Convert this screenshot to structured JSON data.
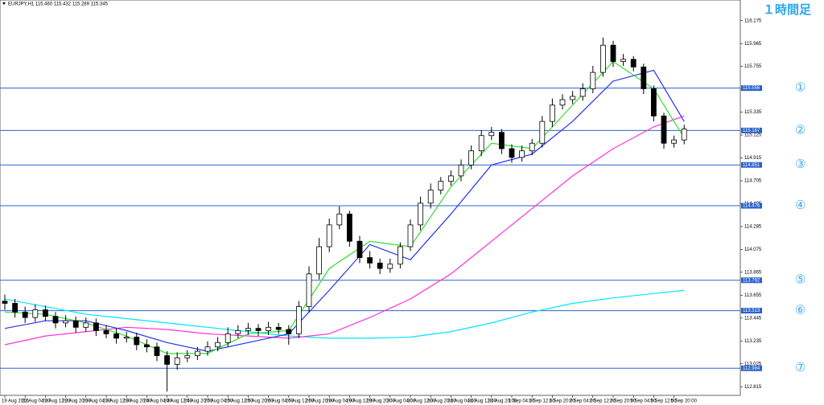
{
  "chart_data": {
    "type": "candlestick",
    "title": "EURJPY,H1 115.460 115.432 115.289 115.345",
    "subtitle": "１時間足",
    "categories": [
      "19 Aug 2016",
      null,
      "22 Aug 04:00",
      null,
      "22 Aug 12:00",
      null,
      "22 Aug 20:00",
      null,
      "23 Aug 04:00",
      null,
      "23 Aug 12:00",
      null,
      "23 Aug 20:00",
      null,
      "24 Aug 04:00",
      null,
      "24 Aug 12:00",
      null,
      "24 Aug 20:00",
      null,
      "25 Aug 04:00",
      null,
      "25 Aug 12:00",
      null,
      "25 Aug 20:00",
      null,
      "26 Aug 04:00",
      null,
      "26 Aug 12:00",
      null,
      "26 Aug 20:00",
      null,
      "29 Aug 04:00",
      null,
      "29 Aug 12:00",
      null,
      "29 Aug 20:00",
      null,
      "30 Aug 04:00",
      null,
      "30 Aug 12:00",
      null,
      "30 Aug 20:00",
      null,
      "31 Aug 04:00",
      null,
      "31 Aug 12:00",
      null,
      "31 Aug 20:00",
      null,
      "1 Sep 04:00",
      null,
      "1 Sep 12:00",
      null,
      "1 Sep 20:00",
      null,
      "2 Sep 04:00",
      null,
      "2 Sep 12:00",
      null,
      "2 Sep 20:00",
      null,
      "5 Sep 04:00",
      null,
      "5 Sep 12:00",
      null,
      "5 Sep 20:00",
      null
    ],
    "open": [
      113.6,
      113.58,
      113.5,
      113.45,
      113.52,
      113.46,
      113.4,
      113.42,
      113.36,
      113.4,
      113.33,
      113.3,
      113.26,
      113.27,
      113.2,
      113.18,
      113.1,
      113.02,
      113.08,
      113.1,
      113.14,
      113.18,
      113.22,
      113.3,
      113.33,
      113.35,
      113.33,
      113.36,
      113.34,
      113.3,
      113.55,
      113.85,
      114.1,
      114.3,
      114.4,
      114.15,
      114.0,
      113.95,
      113.9,
      113.94,
      114.1,
      114.3,
      114.5,
      114.62,
      114.7,
      114.75,
      114.85,
      114.98,
      115.12,
      115.15,
      115.0,
      114.92,
      114.98,
      115.05,
      115.25,
      115.4,
      115.45,
      115.48,
      115.55,
      115.7,
      115.95,
      115.8,
      115.82,
      115.75,
      115.55,
      115.3,
      115.05,
      115.08
    ],
    "high": [
      113.66,
      113.62,
      113.55,
      113.57,
      113.56,
      113.5,
      113.47,
      113.46,
      113.45,
      113.44,
      113.38,
      113.35,
      113.32,
      113.31,
      113.25,
      113.22,
      113.14,
      113.13,
      113.15,
      113.18,
      113.23,
      113.27,
      113.36,
      113.38,
      113.4,
      113.39,
      113.41,
      113.4,
      113.38,
      113.6,
      113.92,
      114.18,
      114.36,
      114.47,
      114.43,
      114.2,
      114.06,
      113.99,
      113.99,
      114.14,
      114.35,
      114.56,
      114.68,
      114.74,
      114.8,
      114.9,
      115.03,
      115.17,
      115.2,
      115.18,
      115.04,
      115.03,
      115.09,
      115.3,
      115.46,
      115.5,
      115.53,
      115.6,
      115.76,
      116.02,
      115.99,
      115.87,
      115.85,
      115.78,
      115.58,
      115.33,
      115.12,
      115.22
    ],
    "low": [
      113.52,
      113.45,
      113.4,
      113.41,
      113.42,
      113.35,
      113.36,
      113.31,
      113.32,
      113.28,
      113.26,
      113.21,
      113.22,
      113.15,
      113.13,
      113.05,
      112.77,
      112.97,
      113.04,
      113.06,
      113.1,
      113.14,
      113.18,
      113.26,
      113.29,
      113.28,
      113.29,
      113.3,
      113.2,
      113.26,
      113.5,
      113.8,
      114.05,
      114.26,
      114.1,
      113.95,
      113.9,
      113.85,
      113.86,
      113.9,
      114.06,
      114.25,
      114.45,
      114.58,
      114.66,
      114.7,
      114.81,
      114.93,
      115.08,
      114.95,
      114.87,
      114.88,
      114.94,
      115.01,
      115.2,
      115.36,
      115.41,
      115.44,
      115.51,
      115.66,
      115.75,
      115.76,
      115.71,
      115.5,
      115.25,
      115.0,
      115.01,
      115.04
    ],
    "close": [
      113.58,
      113.5,
      113.45,
      113.52,
      113.46,
      113.4,
      113.42,
      113.36,
      113.4,
      113.33,
      113.3,
      113.26,
      113.27,
      113.2,
      113.18,
      113.1,
      113.02,
      113.08,
      113.1,
      113.14,
      113.18,
      113.22,
      113.3,
      113.33,
      113.35,
      113.33,
      113.36,
      113.34,
      113.3,
      113.55,
      113.85,
      114.1,
      114.3,
      114.4,
      114.15,
      114.0,
      113.95,
      113.9,
      113.94,
      114.1,
      114.3,
      114.5,
      114.62,
      114.7,
      114.75,
      114.85,
      114.98,
      115.12,
      115.15,
      115.0,
      114.92,
      114.98,
      115.05,
      115.25,
      115.4,
      115.45,
      115.48,
      115.55,
      115.7,
      115.95,
      115.8,
      115.82,
      115.75,
      115.55,
      115.3,
      115.05,
      115.08,
      115.18
    ],
    "lines": {
      "x": [
        0,
        4,
        8,
        12,
        16,
        20,
        24,
        28,
        32,
        36,
        40,
        44,
        48,
        52,
        56,
        60,
        64,
        67
      ],
      "series": [
        {
          "color": "#00e5ff",
          "values": [
            113.62,
            113.55,
            113.48,
            113.44,
            113.4,
            113.36,
            113.32,
            113.28,
            113.26,
            113.26,
            113.27,
            113.32,
            113.4,
            113.5,
            113.58,
            113.63,
            113.67,
            113.7
          ]
        },
        {
          "color": "#ff33d6",
          "values": [
            113.2,
            113.28,
            113.32,
            113.36,
            113.34,
            113.3,
            113.28,
            113.26,
            113.3,
            113.45,
            113.62,
            113.85,
            114.15,
            114.45,
            114.75,
            115.0,
            115.2,
            115.3
          ]
        },
        {
          "color": "#2233ee",
          "values": [
            113.35,
            113.42,
            113.42,
            113.33,
            113.22,
            113.14,
            113.22,
            113.3,
            113.7,
            114.12,
            113.98,
            114.4,
            114.85,
            114.95,
            115.25,
            115.62,
            115.72,
            115.25
          ]
        },
        {
          "color": "#33dd33",
          "values": [
            113.5,
            113.48,
            113.4,
            113.28,
            113.12,
            113.12,
            113.3,
            113.33,
            113.9,
            114.15,
            114.1,
            114.65,
            115.05,
            115.0,
            115.4,
            115.8,
            115.55,
            115.1
          ]
        }
      ]
    },
    "levels": [
      {
        "label": "①",
        "value": 115.556
      },
      {
        "label": "②",
        "value": 115.167
      },
      {
        "label": "③",
        "value": 114.851
      },
      {
        "label": "④",
        "value": 114.476
      },
      {
        "label": "⑤",
        "value": 113.792
      },
      {
        "label": "⑥",
        "value": 113.513
      },
      {
        "label": "⑦",
        "value": 112.984
      }
    ],
    "level_color": "#2a62cc",
    "ylim": [
      112.75,
      116.35
    ],
    "yticks": [
      112.815,
      113.025,
      113.235,
      113.445,
      113.655,
      113.865,
      114.075,
      114.285,
      114.495,
      114.705,
      114.915,
      115.125,
      115.335,
      115.545,
      115.755,
      115.965,
      116.175
    ]
  }
}
